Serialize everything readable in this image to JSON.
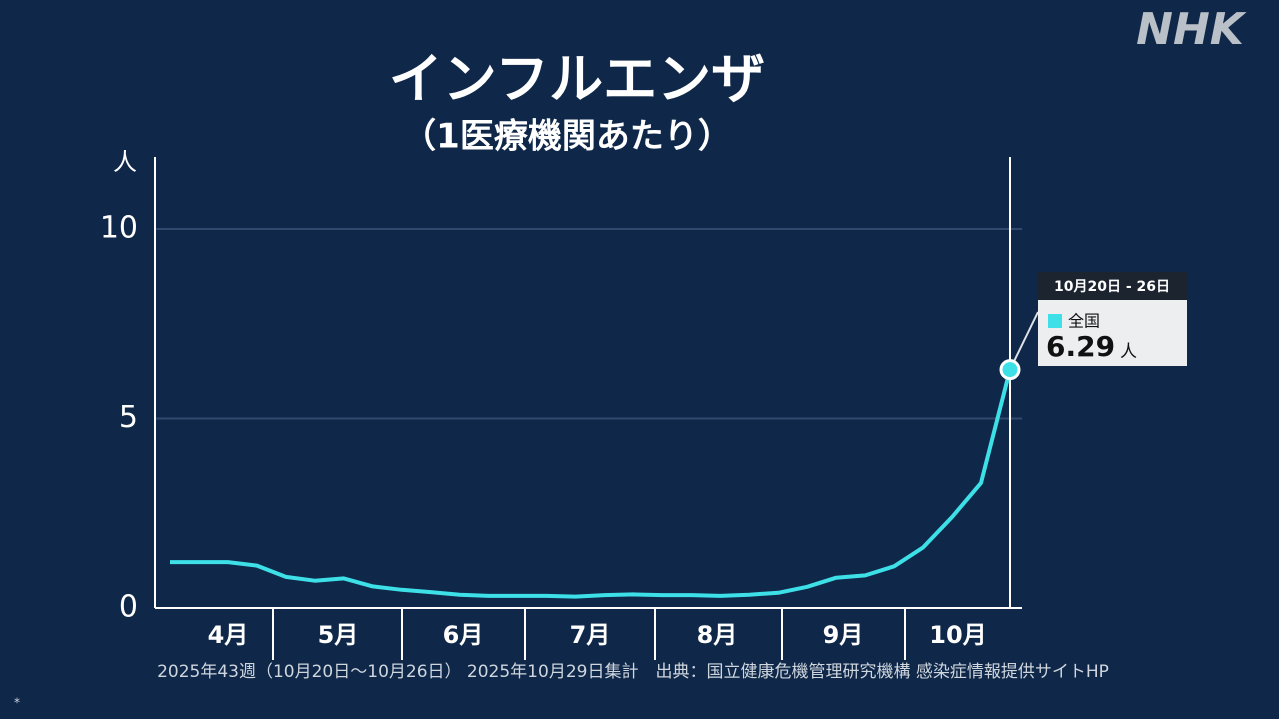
{
  "chart_data": {
    "type": "line",
    "title": "インフルエンザ",
    "subtitle": "（1医療機関あたり）",
    "y_unit": "人",
    "logo": "NHK",
    "footnote": "2025年43週（10月20日～10月26日） 2025年10月29日集計　出典：国立健康危機管理研究機構 感染症情報提供サイトHP",
    "mark": "*",
    "categories": [
      null,
      null,
      null,
      null,
      null,
      null,
      null,
      null,
      null,
      null,
      null,
      null,
      null,
      null,
      null,
      null,
      null,
      null,
      null,
      null,
      null,
      null,
      null,
      null,
      null,
      null,
      null,
      null,
      null,
      null
    ],
    "month_labels": [
      "4月",
      "5月",
      "6月",
      "7月",
      "8月",
      "9月",
      "10月"
    ],
    "series": [
      {
        "name": "全国",
        "color": "#3ee0e8",
        "values": [
          1.21,
          1.21,
          1.21,
          1.12,
          0.82,
          0.72,
          0.78,
          0.57,
          0.48,
          0.42,
          0.35,
          0.32,
          0.32,
          0.32,
          0.3,
          0.34,
          0.36,
          0.34,
          0.34,
          0.32,
          0.35,
          0.4,
          0.56,
          0.8,
          0.86,
          1.1,
          1.6,
          2.4,
          3.3,
          6.29
        ]
      }
    ],
    "tooltip": {
      "period": "10月20日 - 26日"
    },
    "ylim": [
      0,
      11.9
    ],
    "yticks": [
      0,
      5,
      10
    ],
    "grid": true
  }
}
